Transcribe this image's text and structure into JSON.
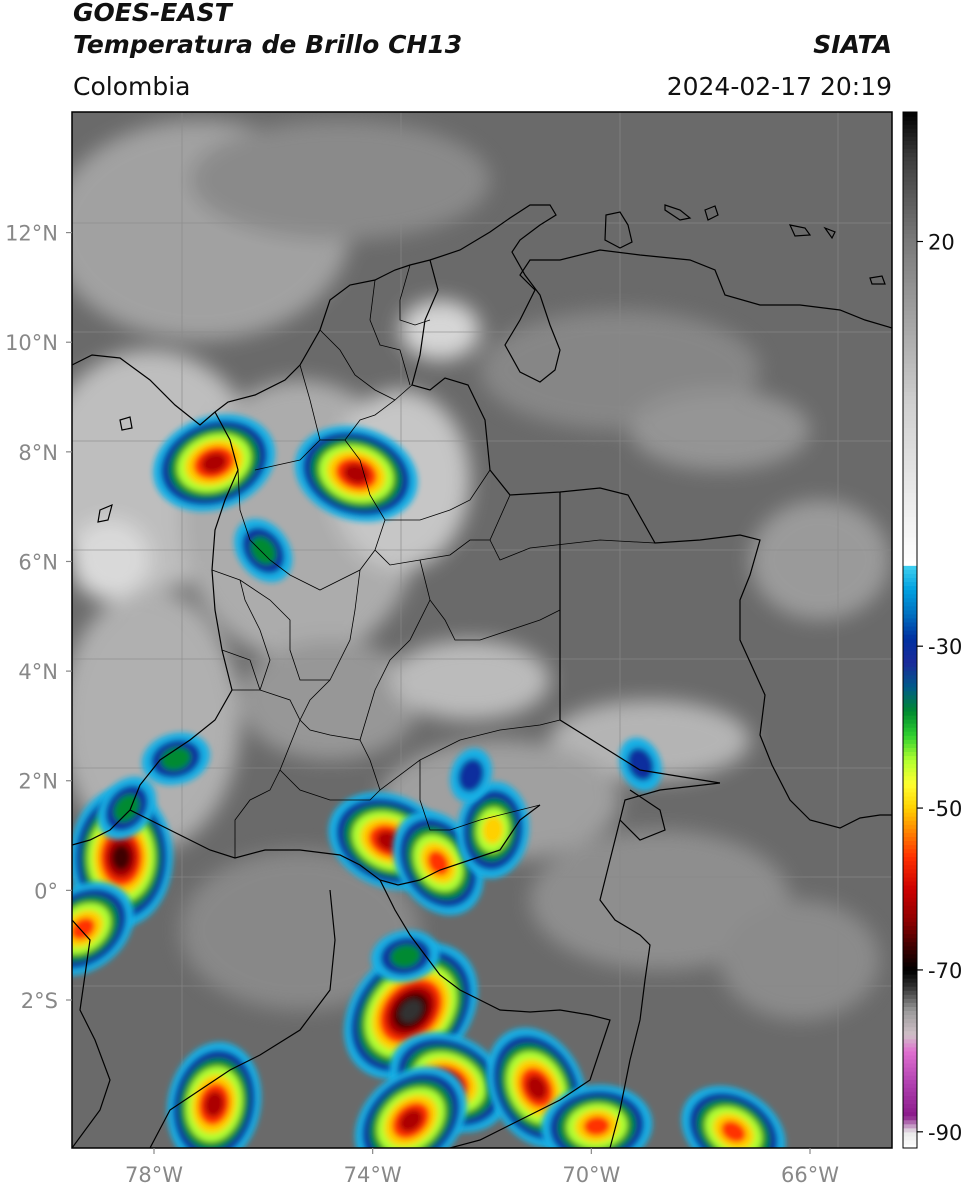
{
  "header": {
    "satellite": "GOES-EAST",
    "product": "Temperatura de Brillo CH13",
    "region": "Colombia",
    "organization": "SIATA",
    "timestamp": "2024-02-17 20:19"
  },
  "map": {
    "lon_range": [
      -79.5,
      -64.5
    ],
    "lat_range": [
      -4.7,
      14.2
    ],
    "lat_ticks": [
      {
        "value": 12,
        "label": "12°N"
      },
      {
        "value": 10,
        "label": "10°N"
      },
      {
        "value": 8,
        "label": "8°N"
      },
      {
        "value": 6,
        "label": "6°N"
      },
      {
        "value": 4,
        "label": "4°N"
      },
      {
        "value": 2,
        "label": "2°N"
      },
      {
        "value": 0,
        "label": "0°"
      },
      {
        "value": -2,
        "label": "2°S"
      }
    ],
    "lon_ticks": [
      {
        "value": -78,
        "label": "78°W"
      },
      {
        "value": -74,
        "label": "74°W"
      },
      {
        "value": -70,
        "label": "70°W"
      },
      {
        "value": -66,
        "label": "66°W"
      }
    ],
    "grid": true,
    "clouds_cold": [
      {
        "lon": -76.9,
        "lat": 7.8,
        "tmin": -62
      },
      {
        "lon": -74.3,
        "lat": 7.6,
        "tmin": -66
      },
      {
        "lon": -76.0,
        "lat": 6.2,
        "tmin": -42
      },
      {
        "lon": -78.6,
        "lat": 0.6,
        "tmin": -68
      },
      {
        "lon": -78.5,
        "lat": 1.5,
        "tmin": -38
      },
      {
        "lon": -77.6,
        "lat": 2.4,
        "tmin": -40
      },
      {
        "lon": -73.7,
        "lat": 0.9,
        "tmin": -64
      },
      {
        "lon": -72.8,
        "lat": 0.5,
        "tmin": -60
      },
      {
        "lon": -71.8,
        "lat": 1.1,
        "tmin": -55
      },
      {
        "lon": -73.3,
        "lat": -2.2,
        "tmin": -72
      },
      {
        "lon": -73.4,
        "lat": -1.2,
        "tmin": -38
      },
      {
        "lon": -72.6,
        "lat": -3.5,
        "tmin": -66
      },
      {
        "lon": -71.0,
        "lat": -3.6,
        "tmin": -62
      },
      {
        "lon": -76.9,
        "lat": -3.9,
        "tmin": -62
      },
      {
        "lon": -73.3,
        "lat": -4.2,
        "tmin": -64
      },
      {
        "lon": -69.9,
        "lat": -4.3,
        "tmin": -58
      },
      {
        "lon": -67.4,
        "lat": -4.4,
        "tmin": -58
      },
      {
        "lon": -69.1,
        "lat": 2.3,
        "tmin": -32
      },
      {
        "lon": -72.2,
        "lat": 2.1,
        "tmin": -34
      },
      {
        "lon": -79.3,
        "lat": -0.7,
        "tmin": -60
      }
    ]
  },
  "colorbar": {
    "range": [
      -92,
      36
    ],
    "ticks": [
      {
        "value": 20,
        "label": "20"
      },
      {
        "value": -30,
        "label": "-30"
      },
      {
        "value": -50,
        "label": "-50"
      },
      {
        "value": -70,
        "label": "-70"
      },
      {
        "value": -90,
        "label": "-90"
      }
    ]
  }
}
